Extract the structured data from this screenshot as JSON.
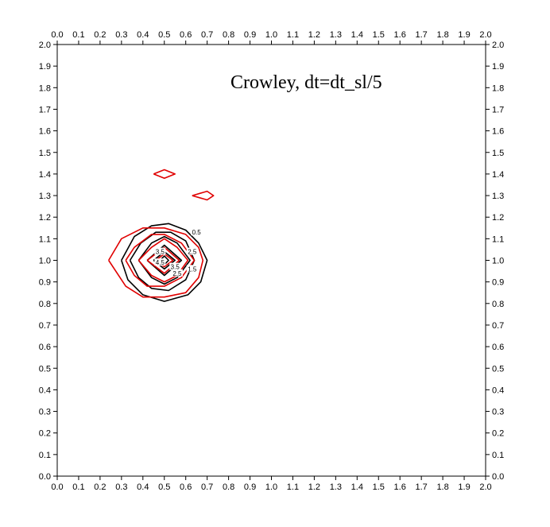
{
  "chart_data": {
    "type": "contour",
    "title": "Crowley, dt=dt_sl/5",
    "xlabel": "",
    "ylabel": "",
    "xlim": [
      0.0,
      2.0
    ],
    "ylim": [
      0.0,
      2.0
    ],
    "x_ticks": [
      "0.0",
      "0.1",
      "0.2",
      "0.3",
      "0.4",
      "0.5",
      "0.6",
      "0.7",
      "0.8",
      "0.9",
      "1.0",
      "1.1",
      "1.2",
      "1.3",
      "1.4",
      "1.5",
      "1.6",
      "1.7",
      "1.8",
      "1.9",
      "2.0"
    ],
    "y_ticks": [
      "0.0",
      "0.1",
      "0.2",
      "0.3",
      "0.4",
      "0.5",
      "0.6",
      "0.7",
      "0.8",
      "0.9",
      "1.0",
      "1.1",
      "1.2",
      "1.3",
      "1.4",
      "1.5",
      "1.6",
      "1.7",
      "1.8",
      "1.9",
      "2.0"
    ],
    "grid": false,
    "series": [
      {
        "color": "#000000",
        "contours": [
          [
            [
              0.3,
              1.0
            ],
            [
              0.36,
              1.11
            ],
            [
              0.44,
              1.16
            ],
            [
              0.52,
              1.17
            ],
            [
              0.6,
              1.14
            ],
            [
              0.66,
              1.08
            ],
            [
              0.7,
              1.0
            ],
            [
              0.67,
              0.9
            ],
            [
              0.61,
              0.84
            ],
            [
              0.5,
              0.81
            ],
            [
              0.4,
              0.84
            ],
            [
              0.33,
              0.91
            ],
            [
              0.3,
              1.0
            ]
          ],
          [
            [
              0.34,
              1.0
            ],
            [
              0.39,
              1.08
            ],
            [
              0.46,
              1.13
            ],
            [
              0.53,
              1.13
            ],
            [
              0.6,
              1.09
            ],
            [
              0.64,
              1.0
            ],
            [
              0.6,
              0.91
            ],
            [
              0.52,
              0.86
            ],
            [
              0.44,
              0.87
            ],
            [
              0.38,
              0.92
            ],
            [
              0.34,
              1.0
            ]
          ],
          [
            [
              0.38,
              1.0
            ],
            [
              0.44,
              1.08
            ],
            [
              0.5,
              1.11
            ],
            [
              0.56,
              1.08
            ],
            [
              0.62,
              1.0
            ],
            [
              0.56,
              0.92
            ],
            [
              0.5,
              0.89
            ],
            [
              0.44,
              0.92
            ],
            [
              0.38,
              1.0
            ]
          ],
          [
            [
              0.42,
              1.0
            ],
            [
              0.5,
              1.07
            ],
            [
              0.58,
              1.0
            ],
            [
              0.5,
              0.93
            ],
            [
              0.42,
              1.0
            ]
          ],
          [
            [
              0.45,
              1.0
            ],
            [
              0.5,
              1.04
            ],
            [
              0.55,
              1.0
            ],
            [
              0.5,
              0.96
            ],
            [
              0.45,
              1.0
            ]
          ],
          [
            [
              0.48,
              1.0
            ],
            [
              0.5,
              1.02
            ],
            [
              0.52,
              1.0
            ],
            [
              0.5,
              0.98
            ],
            [
              0.48,
              1.0
            ]
          ]
        ]
      },
      {
        "color": "#e00000",
        "contours": [
          [
            [
              0.24,
              1.0
            ],
            [
              0.3,
              1.1
            ],
            [
              0.4,
              1.15
            ],
            [
              0.5,
              1.15
            ],
            [
              0.6,
              1.12
            ],
            [
              0.66,
              1.06
            ],
            [
              0.68,
              1.0
            ],
            [
              0.66,
              0.92
            ],
            [
              0.6,
              0.85
            ],
            [
              0.5,
              0.83
            ],
            [
              0.4,
              0.83
            ],
            [
              0.32,
              0.88
            ],
            [
              0.24,
              1.0
            ]
          ],
          [
            [
              0.32,
              1.0
            ],
            [
              0.36,
              1.06
            ],
            [
              0.44,
              1.12
            ],
            [
              0.5,
              1.12
            ],
            [
              0.58,
              1.08
            ],
            [
              0.64,
              1.0
            ],
            [
              0.58,
              0.92
            ],
            [
              0.5,
              0.88
            ],
            [
              0.42,
              0.88
            ],
            [
              0.36,
              0.93
            ],
            [
              0.32,
              1.0
            ]
          ],
          [
            [
              0.38,
              1.0
            ],
            [
              0.44,
              1.06
            ],
            [
              0.5,
              1.1
            ],
            [
              0.56,
              1.06
            ],
            [
              0.61,
              1.0
            ],
            [
              0.56,
              0.93
            ],
            [
              0.5,
              0.9
            ],
            [
              0.44,
              0.93
            ],
            [
              0.38,
              1.0
            ]
          ],
          [
            [
              0.42,
              1.0
            ],
            [
              0.5,
              1.06
            ],
            [
              0.57,
              1.0
            ],
            [
              0.5,
              0.94
            ],
            [
              0.42,
              1.0
            ]
          ],
          [
            [
              0.46,
              1.0
            ],
            [
              0.5,
              1.03
            ],
            [
              0.54,
              1.0
            ],
            [
              0.5,
              0.97
            ],
            [
              0.46,
              1.0
            ]
          ],
          [
            [
              0.45,
              1.4
            ],
            [
              0.5,
              1.42
            ],
            [
              0.55,
              1.4
            ],
            [
              0.5,
              1.38
            ],
            [
              0.45,
              1.4
            ]
          ],
          [
            [
              0.63,
              1.3
            ],
            [
              0.7,
              1.32
            ],
            [
              0.73,
              1.3
            ],
            [
              0.7,
              1.28
            ],
            [
              0.63,
              1.3
            ]
          ]
        ]
      }
    ],
    "contour_labels": [
      {
        "text": "0.5",
        "x": 0.65,
        "y": 1.13
      },
      {
        "text": "2.5",
        "x": 0.63,
        "y": 1.04
      },
      {
        "text": "3.5",
        "x": 0.48,
        "y": 1.04
      },
      {
        "text": "4.5",
        "x": 0.48,
        "y": 0.99
      },
      {
        "text": "3.5",
        "x": 0.55,
        "y": 0.97
      },
      {
        "text": "1.5",
        "x": 0.63,
        "y": 0.96
      },
      {
        "text": "2.5",
        "x": 0.56,
        "y": 0.94
      }
    ]
  }
}
